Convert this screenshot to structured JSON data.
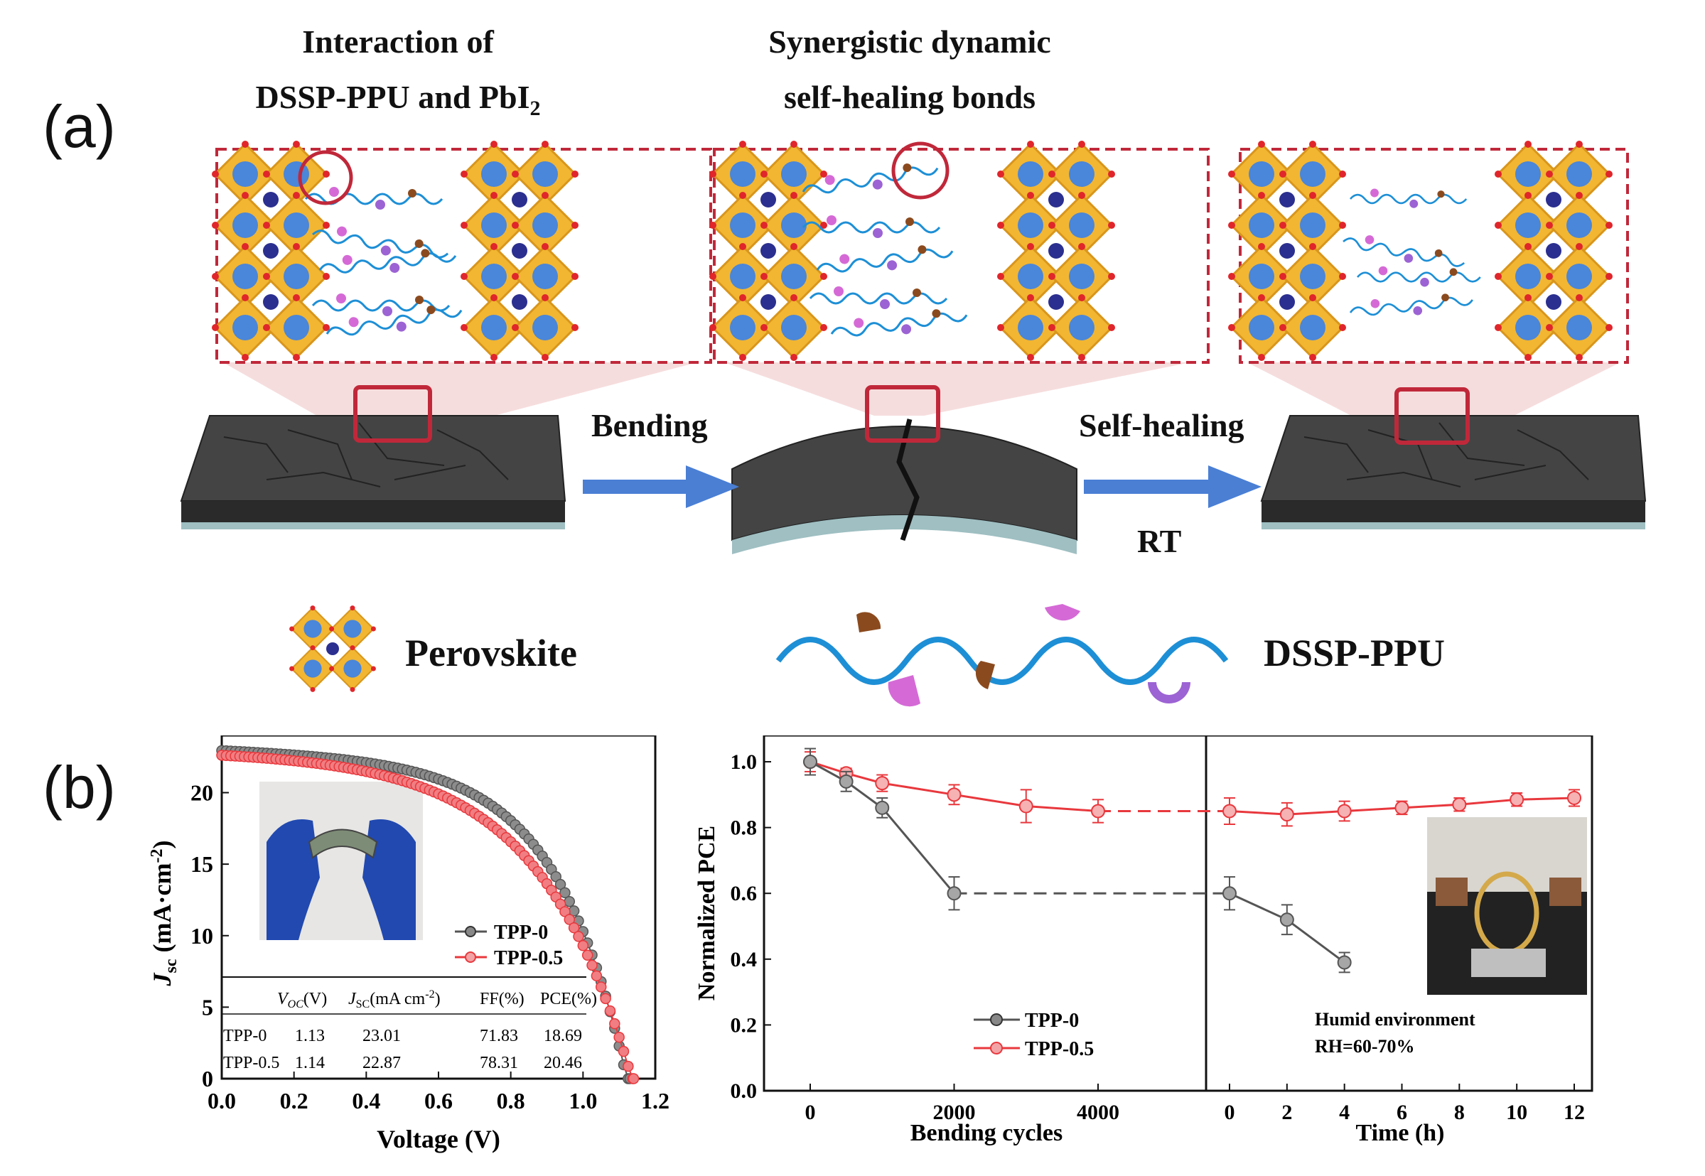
{
  "figure": {
    "panel_a_label": "(a)",
    "panel_b_label": "(b)",
    "stage1_title_line1": "Interaction of",
    "stage1_title_line2": "DSSP-PPU and PbI",
    "stage1_title_sub": "2",
    "stage2_title_line1": "Synergistic dynamic",
    "stage2_title_line2": "self-healing bonds",
    "arrow1_label": "Bending",
    "arrow2_label": "Self-healing",
    "arrow2_sublabel": "RT",
    "legend_perovskite": "Perovskite",
    "legend_polymer": "DSSP-PPU",
    "colors": {
      "red_series": "#e8383d",
      "black_series": "#555555",
      "octahedron": "#f2b632",
      "b_site": "#4a86d9",
      "a_site": "#2b2f8f",
      "polymer_chain": "#1d8fd6",
      "dashed_box": "#c0283a",
      "film": "#3a3a3a",
      "arrow": "#4a7fd4"
    }
  },
  "chart_data": [
    {
      "type": "line",
      "name": "J-V curves",
      "xlabel": "Voltage (V)",
      "ylabel_main": "J",
      "ylabel_sub": "sc",
      "ylabel_unit": " (mA·cm",
      "ylabel_sup": "-2",
      "ylabel_close": ")",
      "xlim": [
        0.0,
        1.2
      ],
      "ylim": [
        0,
        24
      ],
      "xticks": [
        "0.0",
        "0.2",
        "0.4",
        "0.6",
        "0.8",
        "1.0",
        "1.2"
      ],
      "yticks": [
        "0",
        "5",
        "10",
        "15",
        "20"
      ],
      "series": [
        {
          "name": "TPP-0",
          "color": "#555555",
          "jsc": 23.01,
          "voc": 1.13,
          "ff": 71.83
        },
        {
          "name": "TPP-0.5",
          "color": "#e8383d",
          "jsc": 22.87,
          "voc": 1.14,
          "ff": 78.31
        }
      ],
      "table": {
        "headers": [
          "",
          "V_OC(V)",
          "J_SC(mA cm-2)",
          "FF(%)",
          "PCE(%)"
        ],
        "header_voc_main": "V",
        "header_voc_sub": "OC",
        "header_voc_unit": "(V)",
        "header_jsc_main": "J",
        "header_jsc_sub": "SC",
        "header_jsc_unit": "(mA cm",
        "header_jsc_sup": "-2",
        "header_jsc_close": ")",
        "header_ff": "FF(%)",
        "header_pce": "PCE(%)",
        "rows": [
          [
            "TPP-0",
            "1.13",
            "23.01",
            "71.83",
            "18.69"
          ],
          [
            "TPP-0.5",
            "1.14",
            "22.87",
            "78.31",
            "20.46"
          ]
        ]
      }
    },
    {
      "type": "line",
      "name": "Normalized PCE vs bending cycles",
      "ylabel": "Normalized PCE",
      "xlabel": "Bending cycles",
      "xticks": [
        "0",
        "2000",
        "4000"
      ],
      "ylim": [
        0.0,
        1.08
      ],
      "yticks": [
        "0.0",
        "0.2",
        "0.4",
        "0.6",
        "0.8",
        "1.0"
      ],
      "series": [
        {
          "name": "TPP-0",
          "color": "#555555",
          "x": [
            0,
            500,
            1000,
            2000
          ],
          "y": [
            1.0,
            0.94,
            0.86,
            0.6
          ],
          "err": [
            0.04,
            0.03,
            0.03,
            0.05
          ]
        },
        {
          "name": "TPP-0.5",
          "color": "#e8383d",
          "x": [
            0,
            500,
            1000,
            2000,
            3000,
            4000
          ],
          "y": [
            1.0,
            0.965,
            0.935,
            0.9,
            0.865,
            0.85
          ],
          "err": [
            0.03,
            0.015,
            0.025,
            0.03,
            0.05,
            0.035
          ]
        }
      ]
    },
    {
      "type": "line",
      "name": "Normalized PCE vs time",
      "xlabel": "Time (h)",
      "xticks": [
        "0",
        "2",
        "4",
        "6",
        "8",
        "10",
        "12"
      ],
      "annotation_line1": "Humid environment",
      "annotation_line2": "RH=60-70%",
      "series": [
        {
          "name": "TPP-0",
          "color": "#555555",
          "x": [
            0,
            2,
            4
          ],
          "y": [
            0.6,
            0.52,
            0.39
          ],
          "err": [
            0.05,
            0.045,
            0.03
          ]
        },
        {
          "name": "TPP-0.5",
          "color": "#e8383d",
          "x": [
            0,
            2,
            4,
            6,
            8,
            10,
            12
          ],
          "y": [
            0.85,
            0.84,
            0.85,
            0.86,
            0.87,
            0.885,
            0.89
          ],
          "err": [
            0.04,
            0.035,
            0.03,
            0.02,
            0.02,
            0.02,
            0.025
          ]
        }
      ]
    }
  ]
}
